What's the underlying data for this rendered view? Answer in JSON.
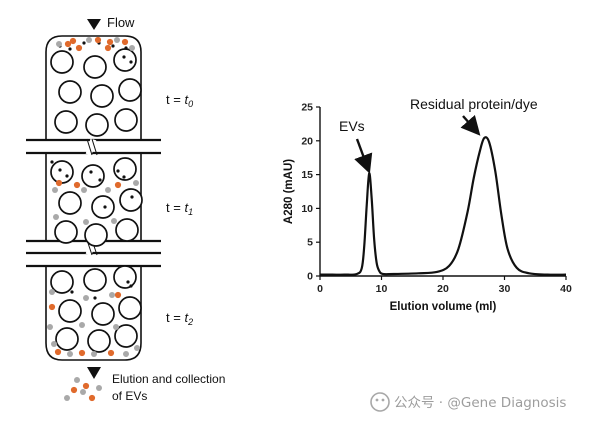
{
  "diagram": {
    "flow_label": "Flow",
    "time_labels": [
      {
        "t": "t = ",
        "sub": "0"
      },
      {
        "t": "t = ",
        "sub": "1"
      },
      {
        "t": "t = ",
        "sub": "2"
      }
    ],
    "outlet_label_line1": "Elution and collection",
    "outlet_label_line2": "of EVs",
    "colors": {
      "ev": "#e06a2c",
      "protein": "#a9a9a9",
      "bead": "#111111"
    }
  },
  "chart_data": {
    "type": "line",
    "xlabel": "Elution volume (ml)",
    "ylabel": "A280 (mAU)",
    "xlim": [
      0,
      40
    ],
    "ylim": [
      0,
      25
    ],
    "xticks": [
      0,
      10,
      20,
      30,
      40
    ],
    "yticks": [
      0,
      5,
      10,
      15,
      20,
      25
    ],
    "grid": false,
    "series": [
      {
        "x": [
          0,
          2,
          4,
          6,
          6.8,
          7.2,
          7.6,
          8.0,
          8.4,
          8.8,
          9.2,
          9.6,
          10.2,
          12,
          16,
          19,
          21,
          22.5,
          24,
          25,
          26,
          26.7,
          27.5,
          28.5,
          29.5,
          30.5,
          32,
          34,
          37,
          40
        ],
        "y": [
          0.2,
          0.2,
          0.2,
          0.3,
          1.2,
          4.5,
          10.5,
          15.2,
          11.5,
          5.5,
          2.0,
          0.8,
          0.3,
          0.3,
          0.4,
          0.6,
          1.5,
          4.0,
          9.5,
          14.5,
          18.5,
          20.4,
          19.8,
          15.5,
          9.0,
          4.0,
          1.2,
          0.4,
          0.2,
          0.2
        ]
      }
    ],
    "annotations": [
      {
        "text": "EVs",
        "x": 8,
        "y": 15.2
      },
      {
        "text": "Residual protein/dye",
        "x": 26.7,
        "y": 20.4
      }
    ]
  },
  "watermark": "公众号 · @Gene Diagnosis"
}
